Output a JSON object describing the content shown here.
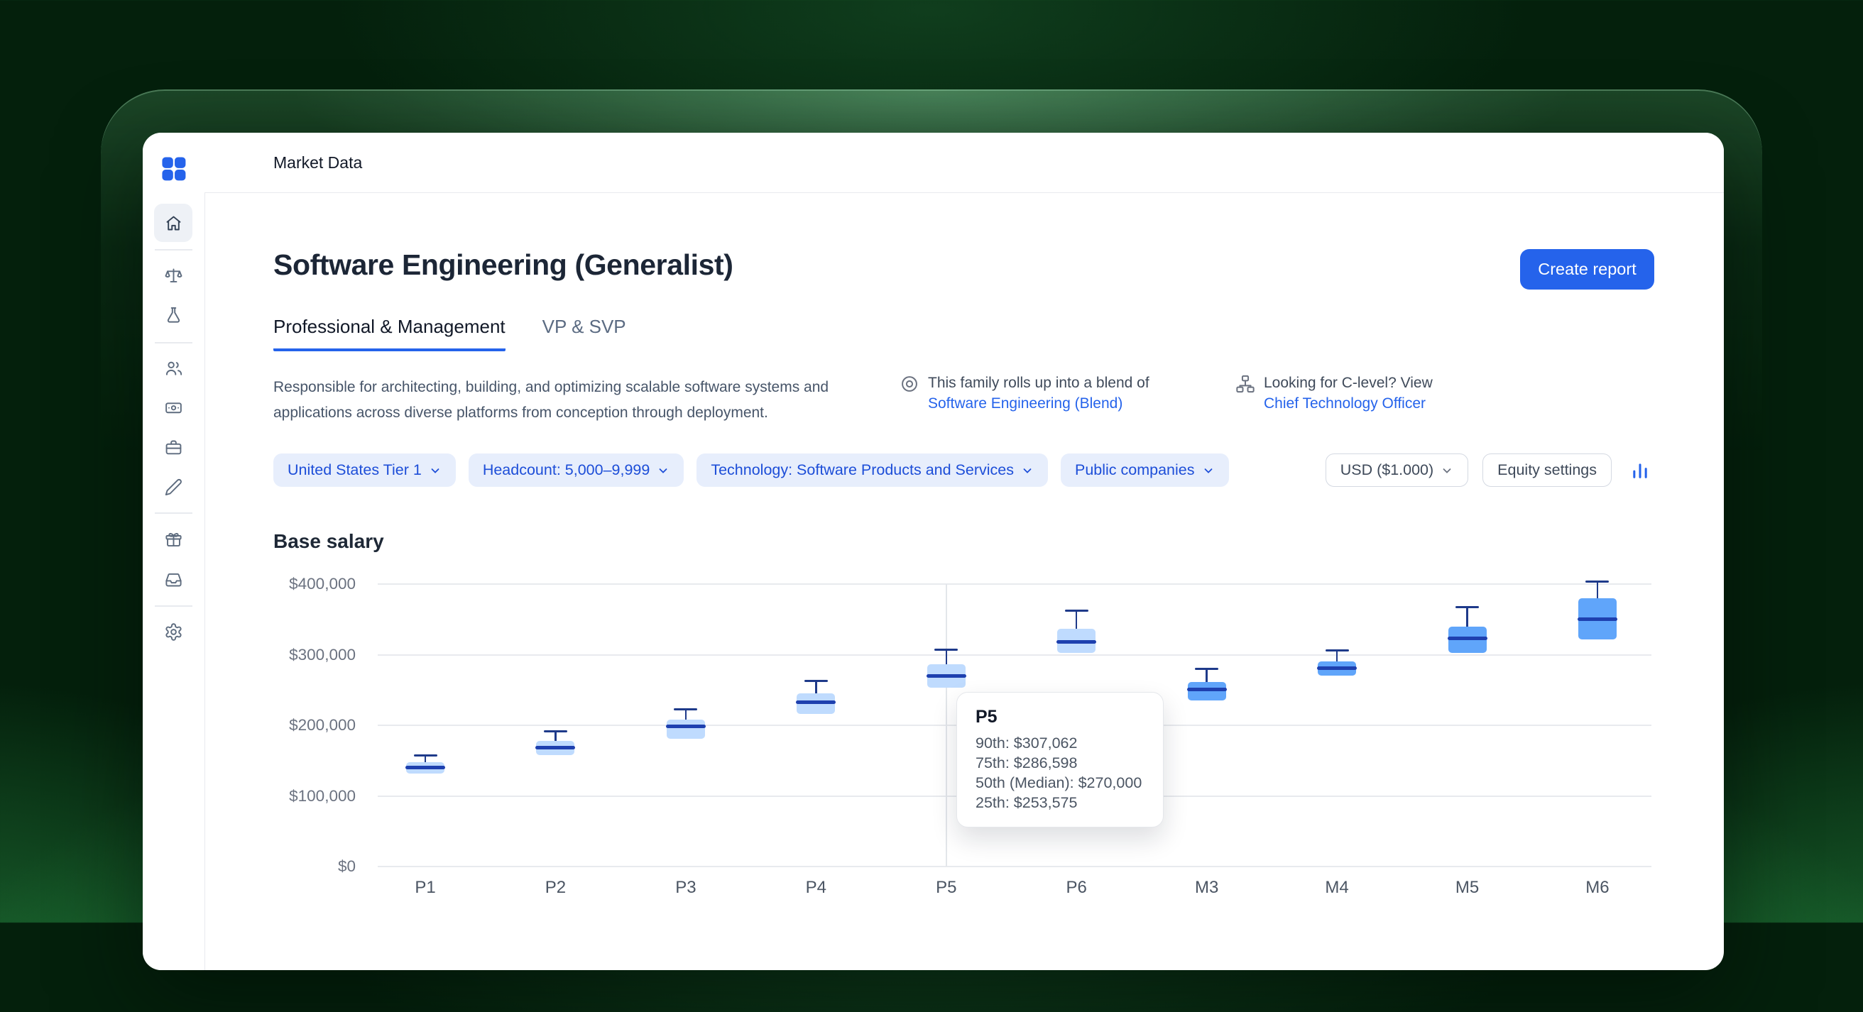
{
  "topbar": {
    "title": "Market Data"
  },
  "header": {
    "title": "Software Engineering (Generalist)",
    "create_report": "Create report"
  },
  "tabs": {
    "professional": "Professional & Management",
    "vp": "VP & SVP"
  },
  "family": {
    "description": "Responsible for architecting, building, and optimizing scalable software systems and applications across diverse platforms from conception through deployment.",
    "blend_text": "This family rolls up into a blend of",
    "blend_link": "Software Engineering (Blend)",
    "clevel_text": "Looking for C-level? View",
    "clevel_link": "Chief Technology Officer"
  },
  "filters": {
    "chips": [
      "United States Tier 1",
      "Headcount: 5,000–9,999",
      "Technology: Software Products and Services",
      "Public companies"
    ],
    "currency": "USD ($1.000)",
    "equity": "Equity settings"
  },
  "section": {
    "title": "Base salary"
  },
  "tooltip": {
    "title": "P5",
    "lines": [
      "90th: $307,062",
      "75th: $286,598",
      "50th (Median): $270,000",
      "25th: $253,575"
    ]
  },
  "chart_data": {
    "type": "boxplot",
    "title": "Base salary",
    "categories": [
      "P1",
      "P2",
      "P3",
      "P4",
      "P5",
      "P6",
      "M3",
      "M4",
      "M5",
      "M6"
    ],
    "series": [
      {
        "level": "P1",
        "p25": 132000,
        "p50": 140000,
        "p75": 148000,
        "p90": 157000,
        "fill": "#bfdbfe"
      },
      {
        "level": "P2",
        "p25": 158000,
        "p50": 168000,
        "p75": 178000,
        "p90": 191000,
        "fill": "#bfdbfe"
      },
      {
        "level": "P3",
        "p25": 181000,
        "p50": 198000,
        "p75": 208000,
        "p90": 223000,
        "fill": "#bfdbfe"
      },
      {
        "level": "P4",
        "p25": 216000,
        "p50": 233000,
        "p75": 245000,
        "p90": 263000,
        "fill": "#bfdbfe"
      },
      {
        "level": "P5",
        "p25": 253575,
        "p50": 270000,
        "p75": 286598,
        "p90": 307062,
        "fill": "#bfdbfe"
      },
      {
        "level": "P6",
        "p25": 303000,
        "p50": 318000,
        "p75": 337000,
        "p90": 362000,
        "fill": "#bfdbfe"
      },
      {
        "level": "M3",
        "p25": 235000,
        "p50": 251000,
        "p75": 261000,
        "p90": 280000,
        "fill": "#60a5fa"
      },
      {
        "level": "M4",
        "p25": 270000,
        "p50": 281000,
        "p75": 290000,
        "p90": 306000,
        "fill": "#60a5fa"
      },
      {
        "level": "M5",
        "p25": 302000,
        "p50": 323000,
        "p75": 340000,
        "p90": 367000,
        "fill": "#60a5fa"
      },
      {
        "level": "M6",
        "p25": 322000,
        "p50": 350000,
        "p75": 380000,
        "p90": 404000,
        "fill": "#60a5fa"
      }
    ],
    "ylim": [
      0,
      400000
    ],
    "yticks": [
      {
        "value": 0,
        "label": "$0"
      },
      {
        "value": 100000,
        "label": "$100,000"
      },
      {
        "value": 200000,
        "label": "$200,000"
      },
      {
        "value": 300000,
        "label": "$300,000"
      },
      {
        "value": 400000,
        "label": "$400,000"
      }
    ],
    "highlighted": "P5",
    "colors": {
      "median": "#1e40af",
      "whisker": "#1e3a8a",
      "grid": "#e8eaee",
      "axis_text": "#6b7280",
      "x_axis_text": "#4b5563"
    }
  },
  "colors": {
    "accent": "#2563eb"
  }
}
